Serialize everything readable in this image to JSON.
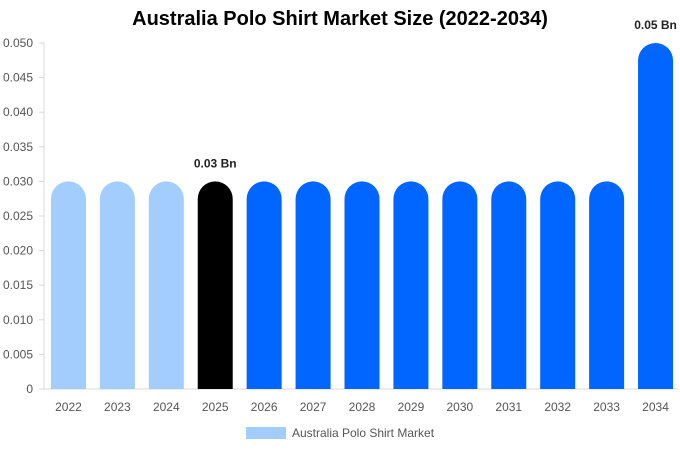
{
  "chart_data": {
    "type": "bar",
    "title": "Australia Polo Shirt Market Size (2022-2034)",
    "categories": [
      "2022",
      "2023",
      "2024",
      "2025",
      "2026",
      "2027",
      "2028",
      "2029",
      "2030",
      "2031",
      "2032",
      "2033",
      "2034"
    ],
    "series": [
      {
        "name": "Australia Polo Shirt Market",
        "values": [
          0.03,
          0.03,
          0.03,
          0.03,
          0.03,
          0.03,
          0.03,
          0.03,
          0.03,
          0.03,
          0.03,
          0.03,
          0.05
        ]
      }
    ],
    "ylim": [
      0,
      0.05
    ],
    "y_ticks": [
      "0",
      "0.005",
      "0.010",
      "0.015",
      "0.020",
      "0.025",
      "0.030",
      "0.035",
      "0.040",
      "0.045",
      "0.050"
    ],
    "data_labels": [
      {
        "category": "2025",
        "text": "0.03 Bn"
      },
      {
        "category": "2034",
        "text": "0.05 Bn"
      }
    ],
    "bar_colors": [
      "#a3cdfd",
      "#a3cdfd",
      "#a3cdfd",
      "#000000",
      "#0066ff",
      "#0066ff",
      "#0066ff",
      "#0066ff",
      "#0066ff",
      "#0066ff",
      "#0066ff",
      "#0066ff",
      "#0066ff"
    ],
    "legend_color": "#a3cdfd",
    "legend_position": "bottom",
    "grid": false
  }
}
